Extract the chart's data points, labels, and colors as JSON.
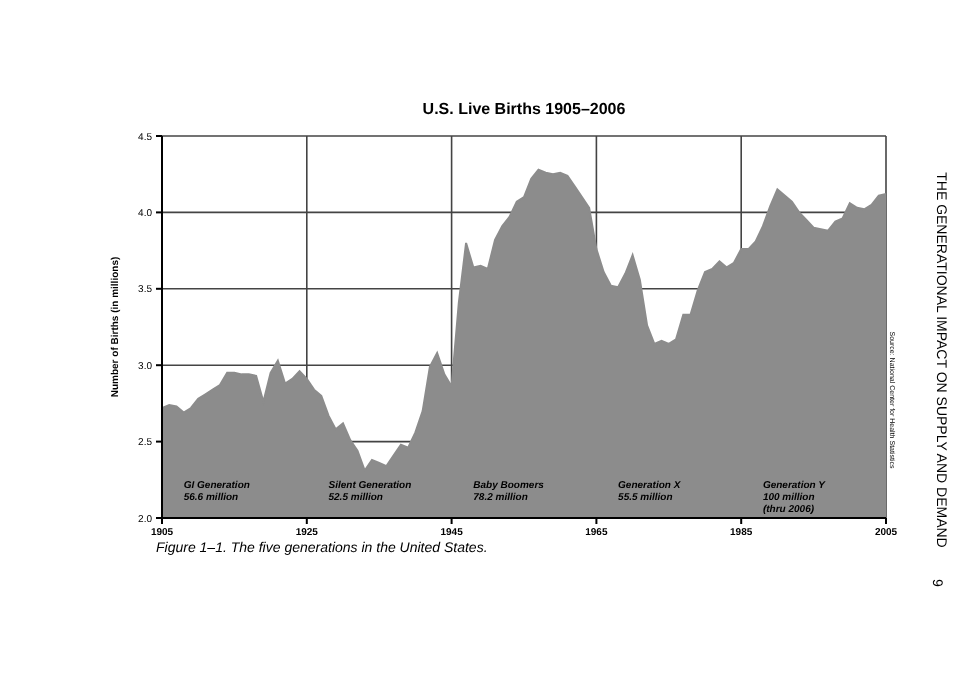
{
  "chart_data": {
    "type": "area",
    "title": "U.S. Live Births 1905–2006",
    "ylabel": "Number of Births (in millions)",
    "x": [
      1905,
      1906,
      1907,
      1908,
      1909,
      1910,
      1911,
      1912,
      1913,
      1914,
      1915,
      1916,
      1917,
      1918,
      1919,
      1920,
      1921,
      1922,
      1923,
      1924,
      1925,
      1926,
      1927,
      1928,
      1929,
      1930,
      1931,
      1932,
      1933,
      1934,
      1935,
      1936,
      1937,
      1938,
      1939,
      1940,
      1941,
      1942,
      1943,
      1944,
      1945,
      1946,
      1947,
      1948,
      1949,
      1950,
      1951,
      1952,
      1953,
      1954,
      1955,
      1956,
      1957,
      1958,
      1959,
      1960,
      1961,
      1962,
      1963,
      1964,
      1965,
      1966,
      1967,
      1968,
      1969,
      1970,
      1971,
      1972,
      1973,
      1974,
      1975,
      1976,
      1977,
      1978,
      1979,
      1980,
      1981,
      1982,
      1983,
      1984,
      1985,
      1986,
      1987,
      1988,
      1989,
      1990,
      1991,
      1992,
      1993,
      1994,
      1995,
      1996,
      1997,
      1998,
      1999,
      2000,
      2001,
      2002,
      2003,
      2004,
      2005
    ],
    "series": [
      {
        "color": "#8c8c8c",
        "values": [
          2.72,
          2.74,
          2.73,
          2.69,
          2.72,
          2.78,
          2.81,
          2.84,
          2.87,
          2.95,
          2.95,
          2.94,
          2.94,
          2.93,
          2.76,
          2.95,
          3.03,
          2.88,
          2.91,
          2.96,
          2.91,
          2.84,
          2.8,
          2.67,
          2.58,
          2.62,
          2.51,
          2.44,
          2.31,
          2.38,
          2.36,
          2.34,
          2.41,
          2.48,
          2.46,
          2.56,
          2.7,
          2.99,
          3.08,
          2.94,
          2.86,
          3.41,
          3.8,
          3.64,
          3.65,
          3.63,
          3.82,
          3.91,
          3.97,
          4.07,
          4.1,
          4.22,
          4.28,
          4.26,
          4.25,
          4.26,
          4.24,
          4.17,
          4.1,
          4.03,
          3.76,
          3.61,
          3.52,
          3.51,
          3.6,
          3.72,
          3.56,
          3.26,
          3.14,
          3.16,
          3.14,
          3.17,
          3.33,
          3.33,
          3.49,
          3.61,
          3.63,
          3.68,
          3.64,
          3.67,
          3.76,
          3.76,
          3.81,
          3.91,
          4.04,
          4.15,
          4.11,
          4.07,
          4.0,
          3.95,
          3.9,
          3.89,
          3.88,
          3.94,
          3.96,
          4.06,
          4.03,
          4.02,
          4.05,
          4.11,
          4.12
        ]
      }
    ],
    "xlim": [
      1905,
      2005
    ],
    "xticks": [
      1905,
      1925,
      1945,
      1965,
      1985,
      2005
    ],
    "ylim": [
      2,
      4.5
    ],
    "yticks": [
      {
        "value": 2,
        "label": "2.0"
      },
      {
        "value": 2.5,
        "label": "2.5"
      },
      {
        "value": 3,
        "label": "3.0"
      },
      {
        "value": 3.5,
        "label": "3.5"
      },
      {
        "value": 4,
        "label": "4.0"
      },
      {
        "value": 4.5,
        "label": "4.5"
      }
    ],
    "grid": true,
    "annotations": [
      "GI Generation\n56.6 million",
      "Silent Generation\n52.5 million",
      "Baby Boomers\n78.2 million",
      "Generation X\n55.5 million",
      "Generation Y\n100 million\n(thru 2006)",
      "Source: National Center for Health Statistics",
      "Figure 1–1. The five generations in the United States.",
      "THE GENERATIONAL IMPACT ON SUPPLY AND DEMAND",
      "9"
    ]
  }
}
